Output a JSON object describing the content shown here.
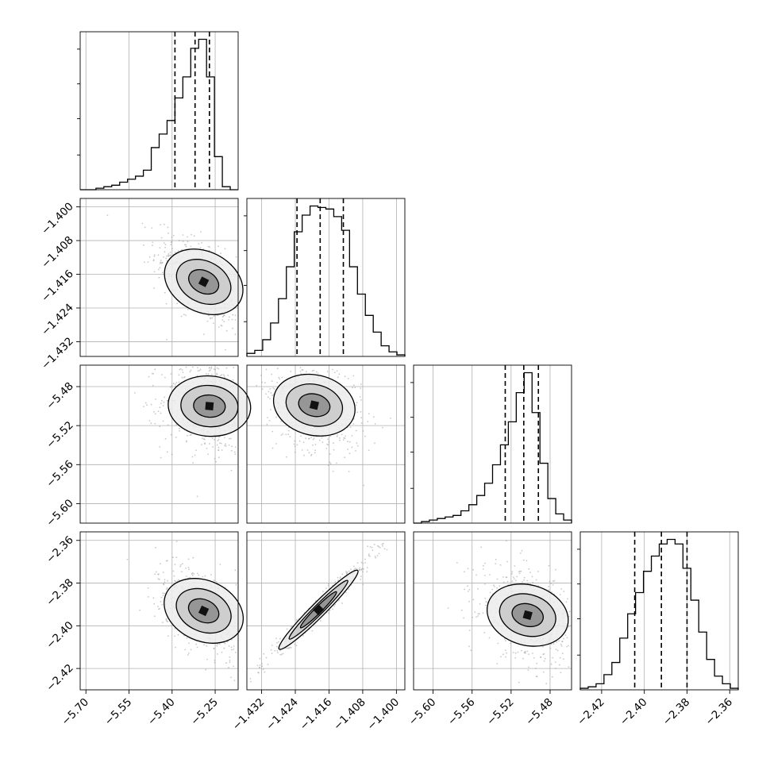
{
  "chart_data": {
    "type": "corner",
    "parameters": [
      {
        "range": [
          -5.72,
          -5.17
        ],
        "ticks": [
          "−5.70",
          "−5.55",
          "−5.40",
          "−5.25"
        ],
        "tick_values": [
          -5.7,
          -5.55,
          -5.4,
          -5.25
        ],
        "quantiles": [
          -5.39,
          -5.32,
          -5.27
        ]
      },
      {
        "range": [
          -1.4355,
          -1.398
        ],
        "ticks": [
          "−1.432",
          "−1.424",
          "−1.416",
          "−1.408",
          "−1.400"
        ],
        "tick_values": [
          -1.432,
          -1.424,
          -1.416,
          -1.408,
          -1.4
        ],
        "quantiles": [
          -1.4236,
          -1.4181,
          -1.4126
        ]
      },
      {
        "range": [
          -5.62,
          -5.458
        ],
        "ticks": [
          "−5.60",
          "−5.56",
          "−5.52",
          "−5.48"
        ],
        "tick_values": [
          -5.6,
          -5.56,
          -5.52,
          -5.48
        ],
        "quantiles": [
          -5.526,
          -5.507,
          -5.492
        ]
      },
      {
        "range": [
          -2.43,
          -2.356
        ],
        "ticks": [
          "−2.42",
          "−2.40",
          "−2.38",
          "−2.36"
        ],
        "tick_values": [
          -2.42,
          -2.4,
          -2.38,
          -2.36
        ],
        "quantiles": [
          -2.4045,
          -2.392,
          -2.38
        ]
      }
    ],
    "histograms": [
      [
        0.0,
        0.0,
        0.01,
        0.02,
        0.03,
        0.05,
        0.07,
        0.09,
        0.13,
        0.28,
        0.37,
        0.46,
        0.61,
        0.75,
        0.94,
        1.0,
        0.75,
        0.22,
        0.02,
        0.0
      ],
      [
        0.02,
        0.04,
        0.11,
        0.22,
        0.38,
        0.59,
        0.82,
        0.93,
        0.99,
        0.98,
        0.97,
        0.92,
        0.83,
        0.59,
        0.41,
        0.27,
        0.16,
        0.07,
        0.03,
        0.01
      ],
      [
        0.0,
        0.01,
        0.02,
        0.03,
        0.04,
        0.05,
        0.08,
        0.12,
        0.18,
        0.26,
        0.38,
        0.51,
        0.66,
        0.85,
        0.98,
        0.72,
        0.39,
        0.16,
        0.06,
        0.02
      ],
      [
        0.01,
        0.02,
        0.04,
        0.1,
        0.18,
        0.34,
        0.5,
        0.64,
        0.78,
        0.88,
        0.96,
        0.99,
        0.96,
        0.8,
        0.59,
        0.38,
        0.2,
        0.09,
        0.04,
        0.01
      ]
    ],
    "pairs": [
      {
        "row": 1,
        "col": 0,
        "center": [
          -5.29,
          -1.4178
        ],
        "corr": -0.6
      },
      {
        "row": 2,
        "col": 0,
        "center": [
          -5.27,
          -5.5
        ],
        "corr": -0.1
      },
      {
        "row": 2,
        "col": 1,
        "center": [
          -1.4195,
          -5.499
        ],
        "corr": -0.3
      },
      {
        "row": 3,
        "col": 0,
        "center": [
          -5.29,
          -2.393
        ],
        "corr": -0.55
      },
      {
        "row": 3,
        "col": 1,
        "center": [
          -1.4185,
          -2.3925
        ],
        "corr": 0.98
      },
      {
        "row": 3,
        "col": 2,
        "center": [
          -5.503,
          -2.395
        ],
        "corr": -0.35
      }
    ],
    "grid": true,
    "contour_levels": 3
  }
}
